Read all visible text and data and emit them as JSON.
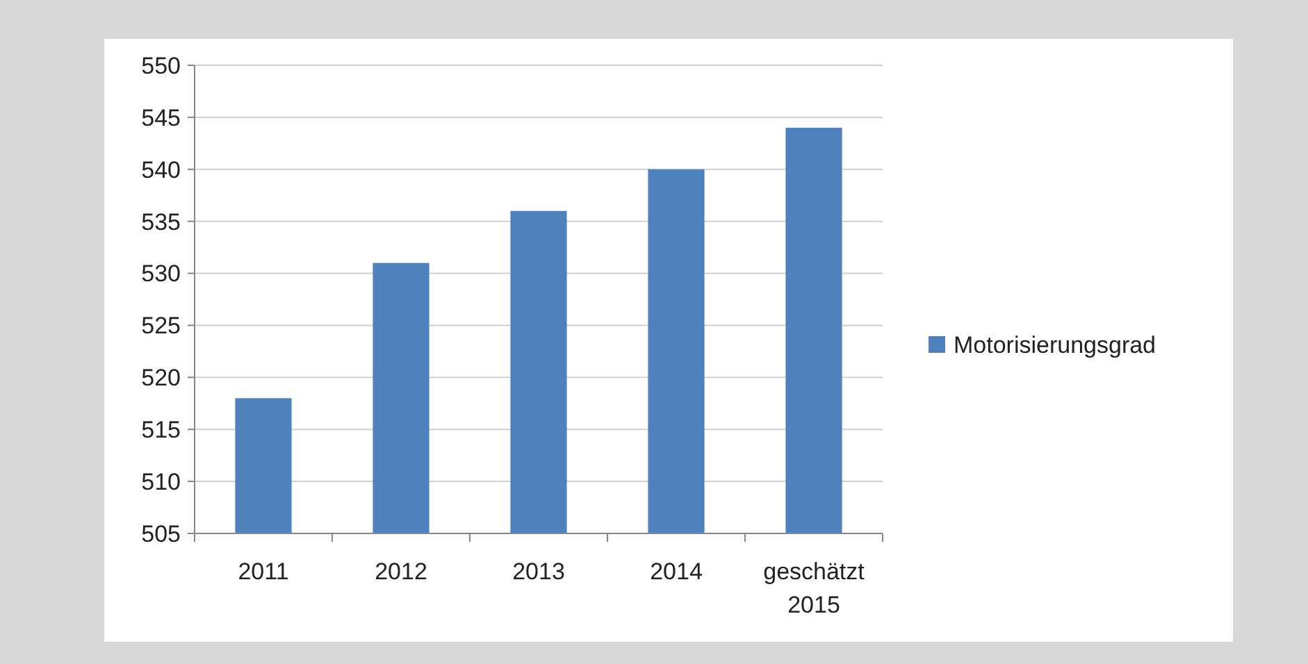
{
  "chart_data": {
    "type": "bar",
    "categories": [
      "2011",
      "2012",
      "2013",
      "2014",
      "geschätzt 2015"
    ],
    "series": [
      {
        "name": "Motorisierungsgrad",
        "color": "#4f81bd",
        "values": [
          518,
          531,
          536,
          540,
          544
        ]
      }
    ],
    "ylim": [
      505,
      550
    ],
    "yticks": [
      505,
      510,
      515,
      520,
      525,
      530,
      535,
      540,
      545,
      550
    ],
    "grid": "y",
    "legend": "right"
  }
}
